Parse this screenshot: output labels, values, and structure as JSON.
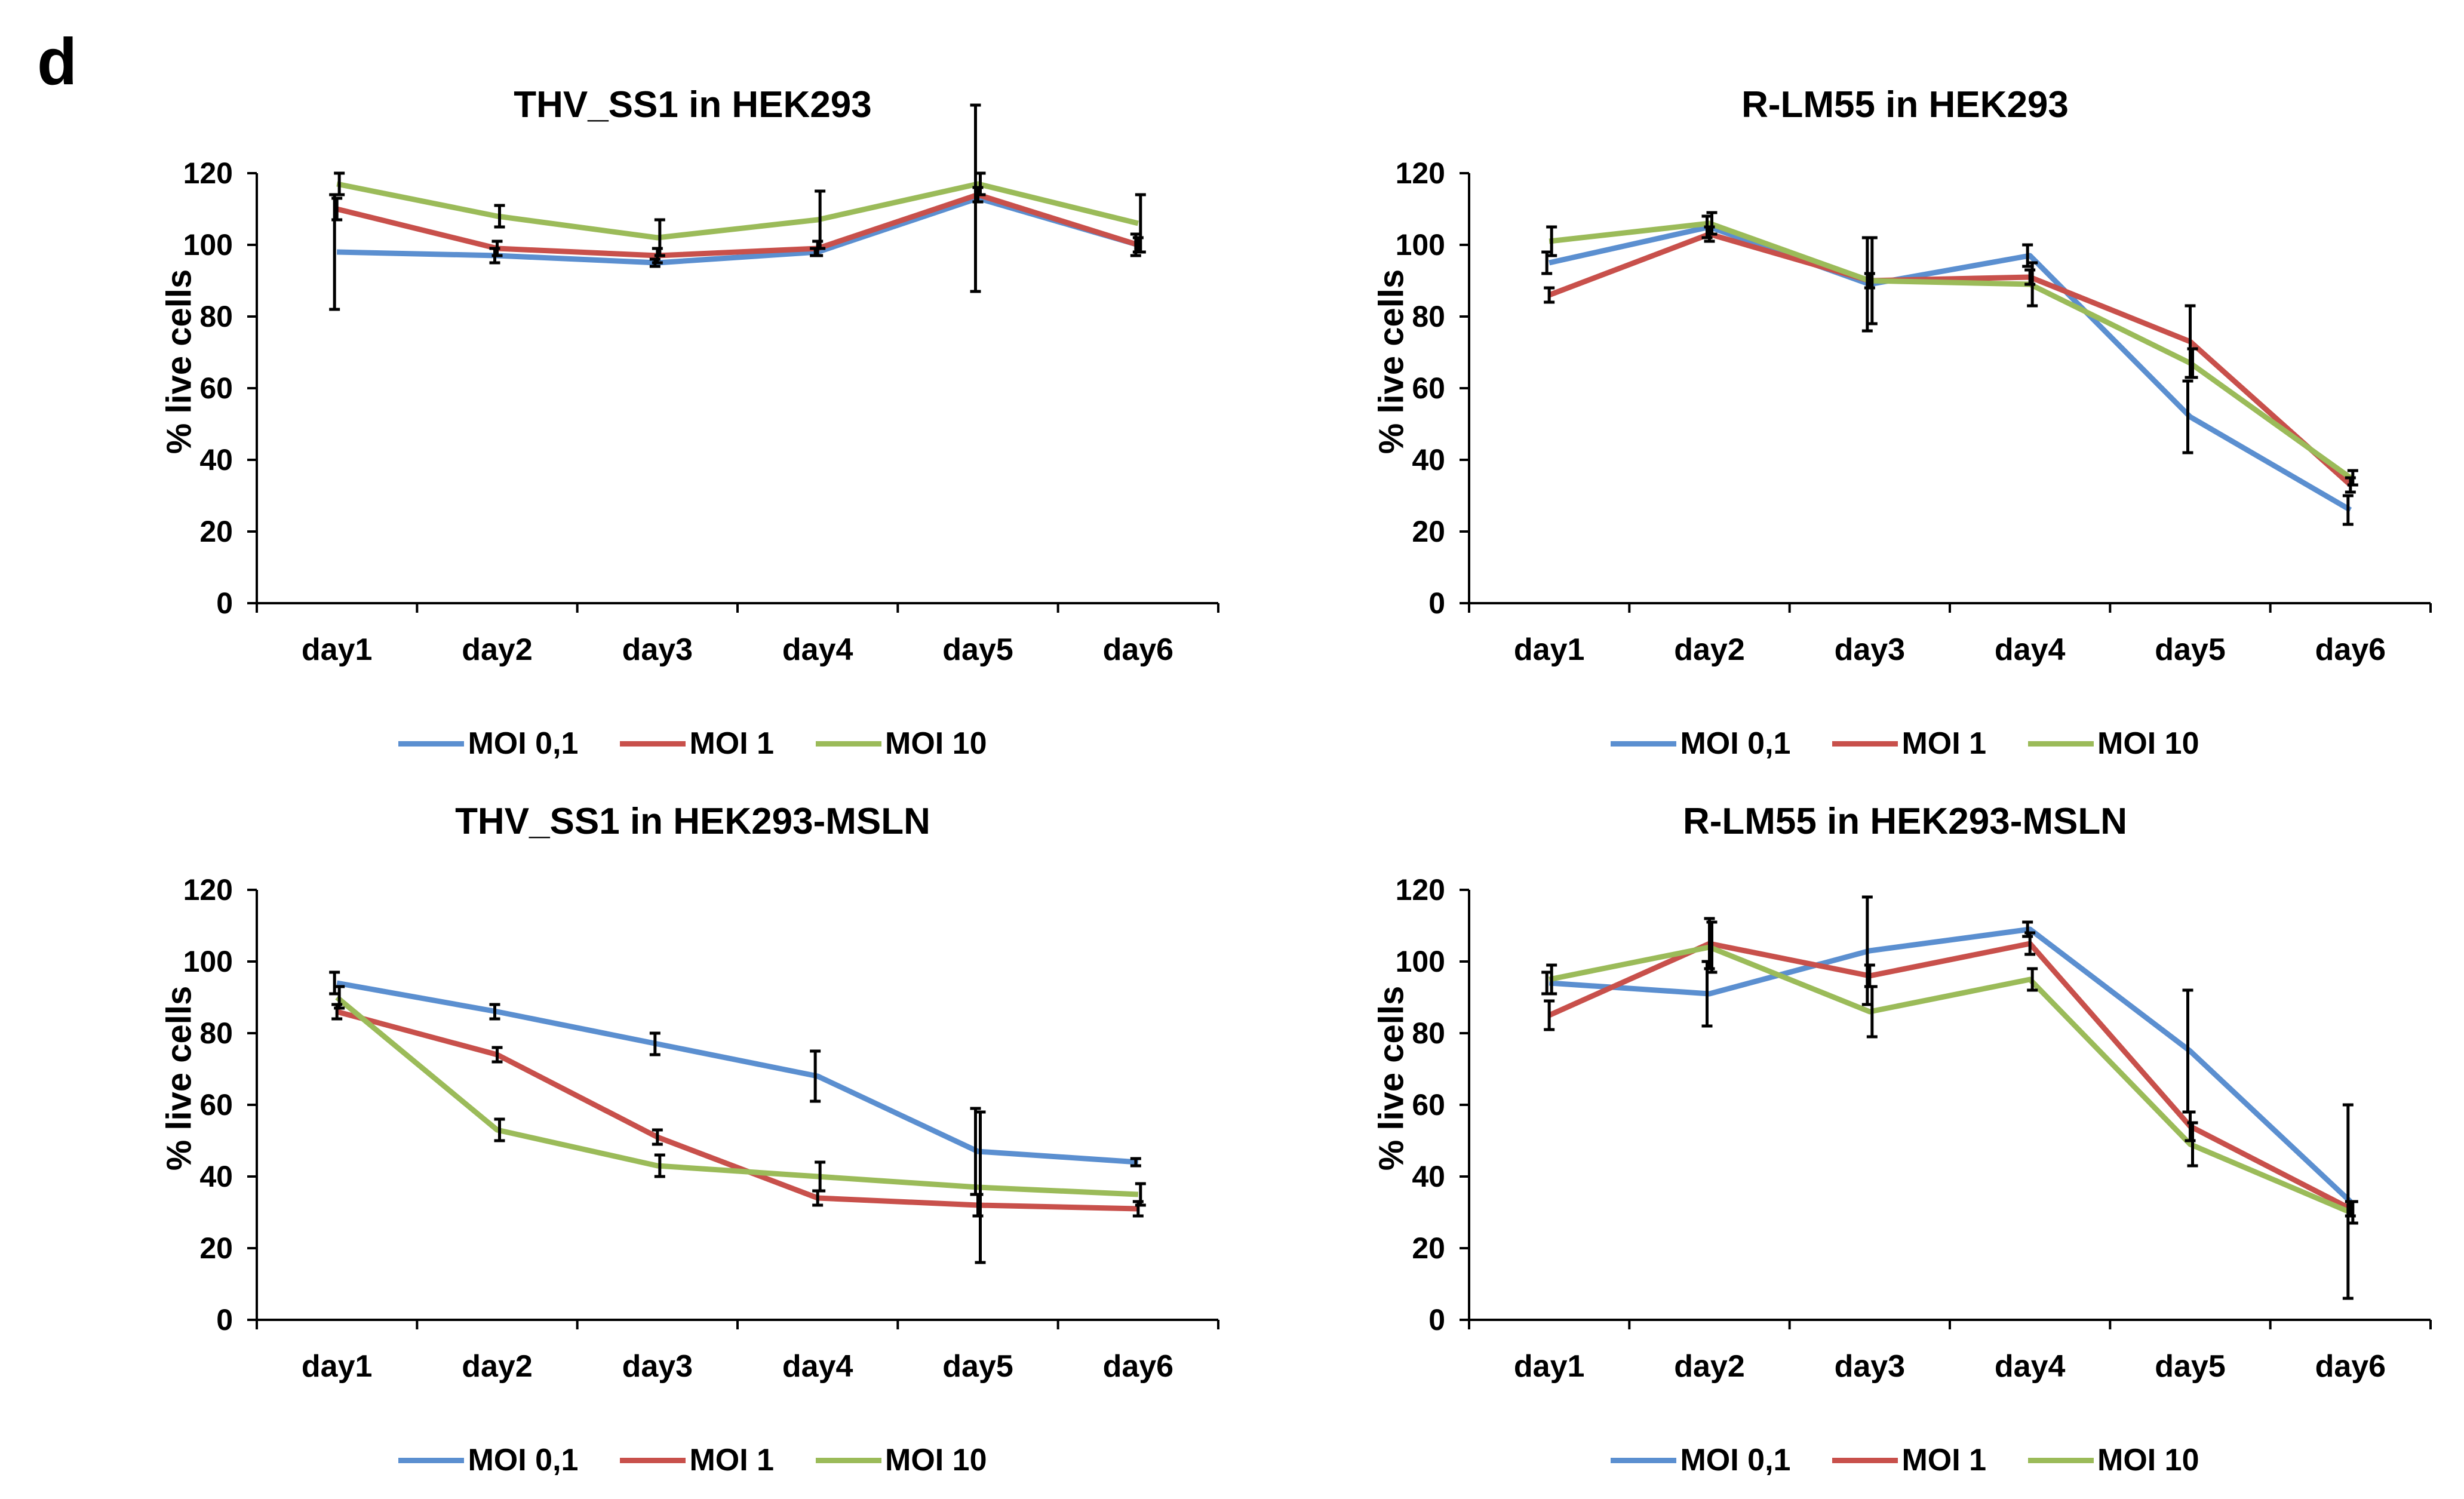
{
  "panel_label": "d",
  "colors": {
    "series": [
      "#5B8FD0",
      "#C8504B",
      "#9BBB59"
    ],
    "axis": "#000000"
  },
  "chart_data": [
    {
      "type": "line",
      "title": "THV_SS1 in HEK293",
      "xlabel": "",
      "ylabel": "% live cells",
      "categories": [
        "day1",
        "day2",
        "day3",
        "day4",
        "day5",
        "day6"
      ],
      "ylim": [
        0,
        120
      ],
      "yticks": [
        "0",
        "20",
        "40",
        "60",
        "80",
        "100",
        "120"
      ],
      "legend_position": "bottom",
      "grid": false,
      "series": [
        {
          "name": "MOI 0,1",
          "values": [
            98,
            97,
            95,
            98,
            113,
            100
          ],
          "errors": [
            16,
            2,
            1,
            1,
            26,
            3
          ]
        },
        {
          "name": "MOI 1",
          "values": [
            110,
            99,
            97,
            99,
            114,
            100
          ],
          "errors": [
            3,
            2,
            2,
            2,
            2,
            2
          ]
        },
        {
          "name": "MOI 10",
          "values": [
            117,
            108,
            102,
            107,
            117,
            106
          ],
          "errors": [
            3,
            3,
            5,
            8,
            3,
            8
          ]
        }
      ]
    },
    {
      "type": "line",
      "title": "R-LM55 in HEK293",
      "xlabel": "",
      "ylabel": "% live cells",
      "categories": [
        "day1",
        "day2",
        "day3",
        "day4",
        "day5",
        "day6"
      ],
      "ylim": [
        0,
        120
      ],
      "yticks": [
        "0",
        "20",
        "40",
        "60",
        "80",
        "100",
        "120"
      ],
      "legend_position": "bottom",
      "grid": false,
      "series": [
        {
          "name": "MOI 0,1",
          "values": [
            95,
            105,
            89,
            97,
            52,
            26
          ],
          "errors": [
            3,
            3,
            13,
            3,
            10,
            4
          ]
        },
        {
          "name": "MOI 1",
          "values": [
            86,
            103,
            90,
            91,
            73,
            33
          ],
          "errors": [
            2,
            2,
            2,
            2,
            10,
            2
          ]
        },
        {
          "name": "MOI 10",
          "values": [
            101,
            106,
            90,
            89,
            67,
            35
          ],
          "errors": [
            4,
            3,
            12,
            6,
            4,
            2
          ]
        }
      ]
    },
    {
      "type": "line",
      "title": "THV_SS1 in HEK293-MSLN",
      "xlabel": "",
      "ylabel": "% live cells",
      "categories": [
        "day1",
        "day2",
        "day3",
        "day4",
        "day5",
        "day6"
      ],
      "ylim": [
        0,
        120
      ],
      "yticks": [
        "0",
        "20",
        "40",
        "60",
        "80",
        "100",
        "120"
      ],
      "legend_position": "bottom",
      "grid": false,
      "series": [
        {
          "name": "MOI 0,1",
          "values": [
            94,
            86,
            77,
            68,
            47,
            44
          ],
          "errors": [
            3,
            2,
            3,
            7,
            12,
            1
          ]
        },
        {
          "name": "MOI 1",
          "values": [
            86,
            74,
            51,
            34,
            32,
            31
          ],
          "errors": [
            2,
            2,
            2,
            2,
            3,
            2
          ]
        },
        {
          "name": "MOI 10",
          "values": [
            90,
            53,
            43,
            40,
            37,
            35
          ],
          "errors": [
            3,
            3,
            3,
            4,
            21,
            3
          ]
        }
      ]
    },
    {
      "type": "line",
      "title": "R-LM55 in HEK293-MSLN",
      "xlabel": "",
      "ylabel": "% live cells",
      "categories": [
        "day1",
        "day2",
        "day3",
        "day4",
        "day5",
        "day6"
      ],
      "ylim": [
        0,
        120
      ],
      "yticks": [
        "0",
        "20",
        "40",
        "60",
        "80",
        "100",
        "120"
      ],
      "legend_position": "bottom",
      "grid": false,
      "series": [
        {
          "name": "MOI 0,1",
          "values": [
            94,
            91,
            103,
            109,
            75,
            33
          ],
          "errors": [
            3,
            9,
            15,
            2,
            17,
            27
          ]
        },
        {
          "name": "MOI 1",
          "values": [
            85,
            105,
            96,
            105,
            54,
            31
          ],
          "errors": [
            4,
            7,
            3,
            3,
            4,
            2
          ]
        },
        {
          "name": "MOI 10",
          "values": [
            95,
            104,
            86,
            95,
            49,
            30
          ],
          "errors": [
            4,
            7,
            7,
            3,
            6,
            3
          ]
        }
      ]
    }
  ]
}
